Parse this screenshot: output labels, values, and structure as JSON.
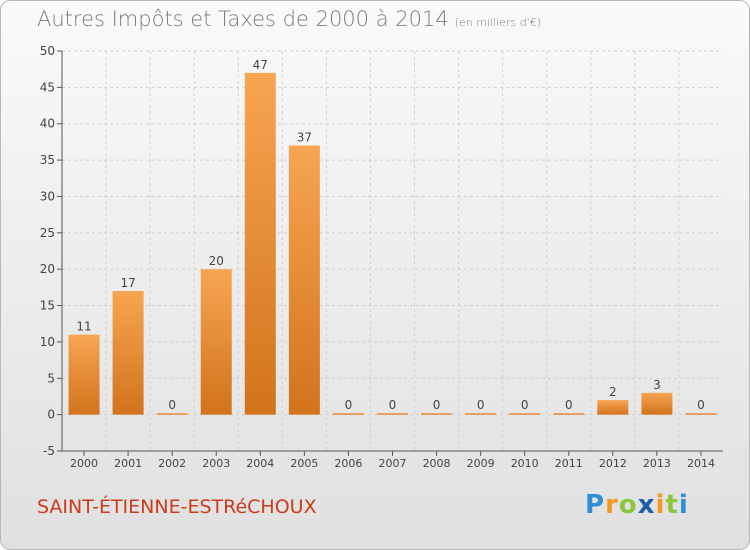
{
  "title": "Autres Impôts et Taxes de 2000 à 2014",
  "subtitle": "(en milliers d'€)",
  "commune": "SAINT-ÉTIENNE-ESTRéCHOUX",
  "logo": {
    "text": "Proxiti",
    "letters": [
      {
        "ch": "P",
        "color": "#2e8fd6"
      },
      {
        "ch": "r",
        "color": "#f29a1f"
      },
      {
        "ch": "o",
        "color": "#8cc63f"
      },
      {
        "ch": "x",
        "color": "#1d5fa8"
      },
      {
        "ch": "i",
        "color": "#f29a1f"
      },
      {
        "ch": "t",
        "color": "#8cc63f"
      },
      {
        "ch": "i",
        "color": "#2e8fd6"
      }
    ]
  },
  "colors": {
    "bar_light": "#f7a552",
    "bar_dark": "#d2731c",
    "axis": "#555555",
    "grid": "#cfcfcf"
  },
  "chart_data": {
    "type": "bar",
    "categories": [
      "2000",
      "2001",
      "2002",
      "2003",
      "2004",
      "2005",
      "2006",
      "2007",
      "2008",
      "2009",
      "2010",
      "2011",
      "2012",
      "2013",
      "2014"
    ],
    "values": [
      11,
      17,
      0,
      20,
      47,
      37,
      0,
      0,
      0,
      0,
      0,
      0,
      2,
      3,
      0
    ],
    "data_labels": [
      "11",
      "17",
      "0",
      "20",
      "47",
      "37",
      "0",
      "0",
      "0",
      "0",
      "0",
      "0",
      "2",
      "3",
      "0"
    ],
    "ylim": [
      -5,
      50
    ],
    "yticks": [
      -5,
      0,
      5,
      10,
      15,
      20,
      25,
      30,
      35,
      40,
      45,
      50
    ],
    "grid": true,
    "xlabel": "",
    "ylabel": ""
  }
}
